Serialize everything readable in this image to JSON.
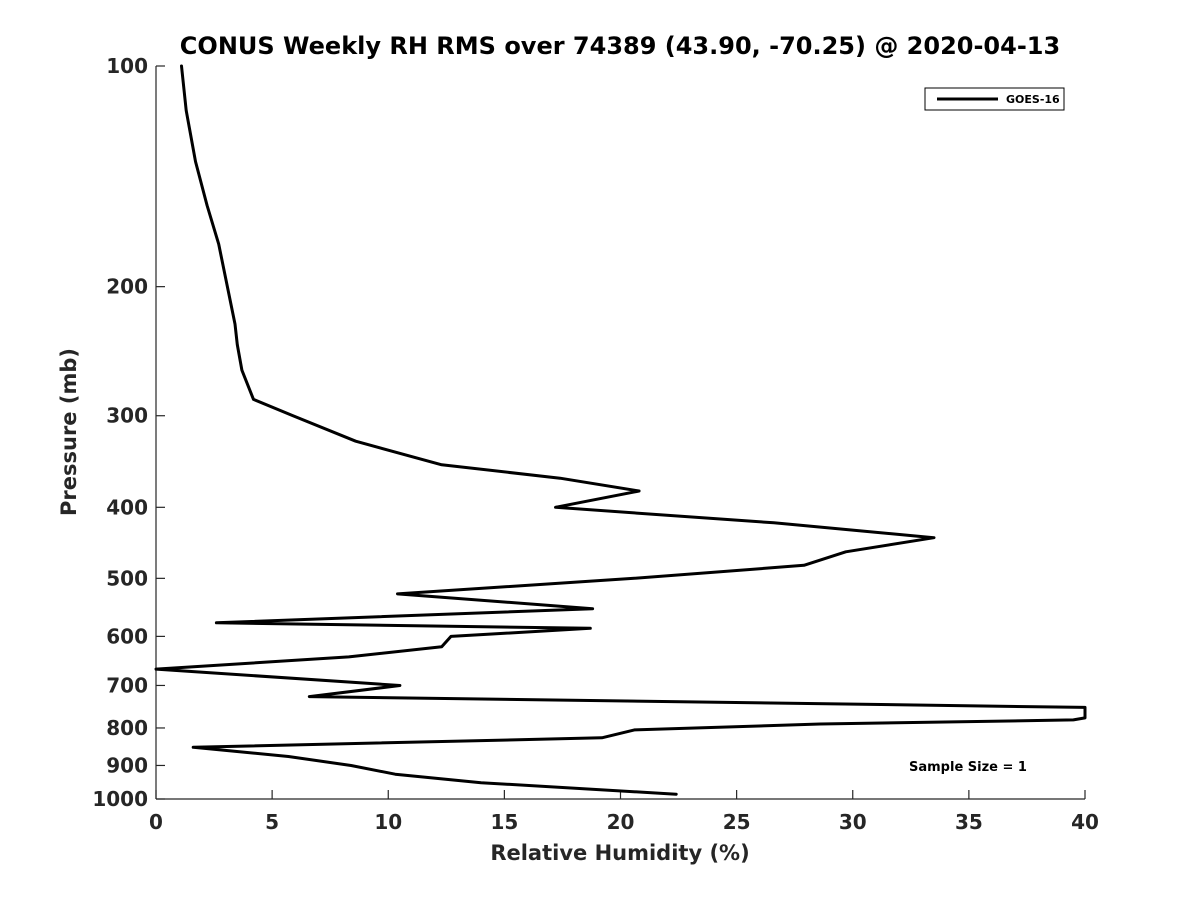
{
  "chart_data": {
    "type": "line",
    "title": "CONUS Weekly RH RMS over 74389 (43.90, -70.25) @ 2020-04-13",
    "xlabel": "Relative Humidity (%)",
    "ylabel": "Pressure (mb)",
    "xlim": [
      0,
      40
    ],
    "ylim": [
      100,
      1000
    ],
    "y_scale": "log",
    "y_inverted": true,
    "grid": false,
    "legend_position": "top-right",
    "x_ticks": [
      "0",
      "5",
      "10",
      "15",
      "20",
      "25",
      "30",
      "35",
      "40"
    ],
    "y_ticks": [
      "100",
      "200",
      "300",
      "400",
      "500",
      "600",
      "700",
      "800",
      "900",
      "1000"
    ],
    "annotation": "Sample Size = 1",
    "series": [
      {
        "name": "GOES-16",
        "color": "#000000",
        "x": [
          1.1,
          1.3,
          1.7,
          2.2,
          2.7,
          3.4,
          3.5,
          3.7,
          4.2,
          5.9,
          8.6,
          12.3,
          17.4,
          20.8,
          17.2,
          26.6,
          33.5,
          29.7,
          27.9,
          20.6,
          10.4,
          18.8,
          2.6,
          18.7,
          12.7,
          12.3,
          8.3,
          0.0,
          10.5,
          6.6,
          40.0,
          40.0,
          39.5,
          28.6,
          20.6,
          19.2,
          1.6,
          5.7,
          8.4,
          10.3,
          14.0,
          22.4
        ],
        "y": [
          100,
          115,
          135,
          155,
          175,
          225,
          240,
          260,
          285,
          300,
          325,
          350,
          365,
          380,
          400,
          420,
          440,
          460,
          480,
          500,
          525,
          550,
          575,
          585,
          600,
          620,
          640,
          665,
          700,
          725,
          750,
          775,
          780,
          790,
          805,
          825,
          850,
          875,
          900,
          925,
          950,
          985
        ]
      }
    ]
  }
}
